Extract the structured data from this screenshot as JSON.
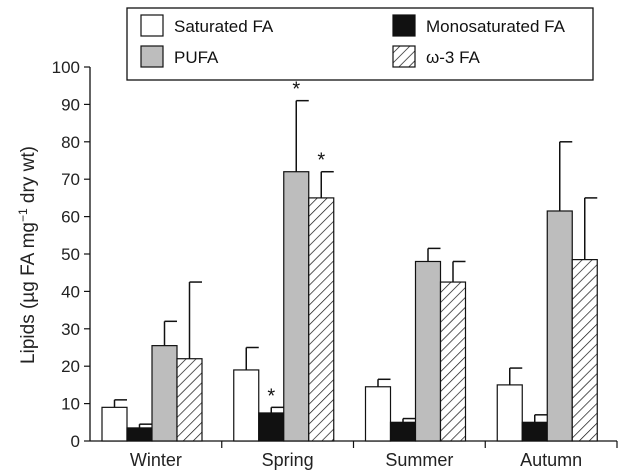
{
  "chart_data": {
    "type": "bar",
    "categories": [
      "Winter",
      "Spring",
      "Summer",
      "Autumn"
    ],
    "ylabel": "Lipids (µg FA mg⁻¹ dry wt)",
    "ylabel_parts": {
      "pre": "Lipids (µg FA mg",
      "sup": "−1",
      "post": " dry wt)"
    },
    "ylim": [
      0,
      100
    ],
    "yticks": [
      0,
      10,
      20,
      30,
      40,
      50,
      60,
      70,
      80,
      90,
      100
    ],
    "legend_position": "top",
    "significance_marker": "*",
    "series": [
      {
        "name": "Saturated FA",
        "fill": "#ffffff",
        "pattern": "none",
        "values": [
          9,
          19,
          14.5,
          15
        ],
        "errors": [
          2,
          6,
          2,
          4.5
        ],
        "significant": [
          false,
          false,
          false,
          false
        ]
      },
      {
        "name": "Monosaturated FA",
        "fill": "#111111",
        "pattern": "none",
        "values": [
          3.5,
          7.5,
          5,
          5
        ],
        "errors": [
          1,
          1.5,
          1,
          2
        ],
        "significant": [
          false,
          true,
          false,
          false
        ]
      },
      {
        "name": "PUFA",
        "fill": "#bdbdbd",
        "pattern": "none",
        "values": [
          25.5,
          72,
          48,
          61.5
        ],
        "errors": [
          6.5,
          19,
          3.5,
          18.5
        ],
        "significant": [
          false,
          true,
          false,
          false
        ]
      },
      {
        "name": "ω-3 FA",
        "fill": "#ffffff",
        "pattern": "diagonal-hatch",
        "values": [
          22,
          65,
          42.5,
          48.5
        ],
        "errors": [
          20.5,
          7,
          5.5,
          16.5
        ],
        "significant": [
          false,
          true,
          false,
          false
        ]
      }
    ]
  }
}
